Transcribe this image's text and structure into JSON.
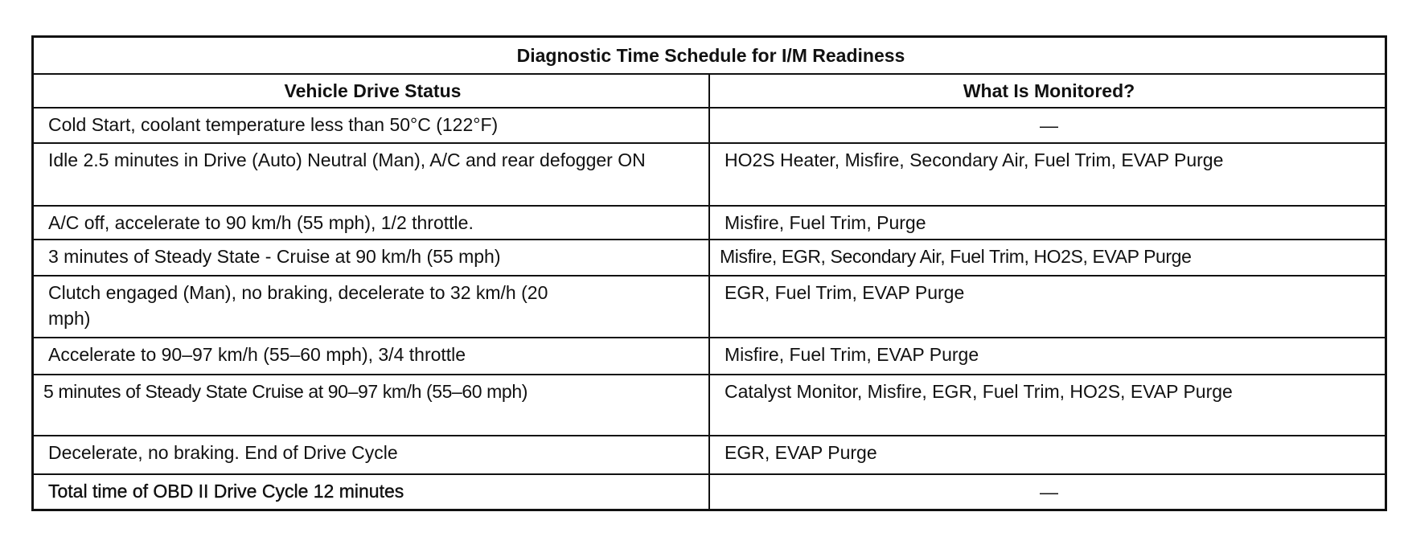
{
  "table": {
    "title": "Diagnostic Time Schedule for I/M Readiness",
    "headers": [
      "Vehicle Drive Status",
      "What Is Monitored?"
    ],
    "rows": [
      {
        "status": "Cold Start, coolant temperature less than 50°C (122°F)",
        "monitored": "—"
      },
      {
        "status": "Idle 2.5 minutes in Drive (Auto) Neutral (Man), A/C and rear defogger ON",
        "monitored": "HO2S Heater, Misfire, Secondary Air, Fuel Trim, EVAP Purge"
      },
      {
        "status": "A/C off, accelerate to 90 km/h (55 mph), 1/2 throttle.",
        "monitored": "Misfire, Fuel Trim, Purge"
      },
      {
        "status": "3 minutes of Steady State - Cruise at 90 km/h (55 mph)",
        "monitored": "Misfire, EGR, Secondary Air, Fuel Trim, HO2S, EVAP Purge"
      },
      {
        "status": "Clutch engaged (Man), no braking, decelerate to 32 km/h (20 mph)",
        "monitored": "EGR, Fuel Trim, EVAP Purge"
      },
      {
        "status": "Accelerate to 90–97 km/h (55–60 mph), 3/4 throttle",
        "monitored": "Misfire, Fuel Trim, EVAP Purge"
      },
      {
        "status": "5 minutes of Steady State Cruise at 90–97 km/h (55–60 mph)",
        "monitored": "Catalyst Monitor, Misfire, EGR, Fuel Trim, HO2S, EVAP Purge"
      },
      {
        "status": "Decelerate, no braking. End of Drive Cycle",
        "monitored": "EGR, EVAP Purge"
      },
      {
        "status": "Total time of OBD II Drive Cycle 12 minutes",
        "monitored": "—"
      }
    ]
  }
}
